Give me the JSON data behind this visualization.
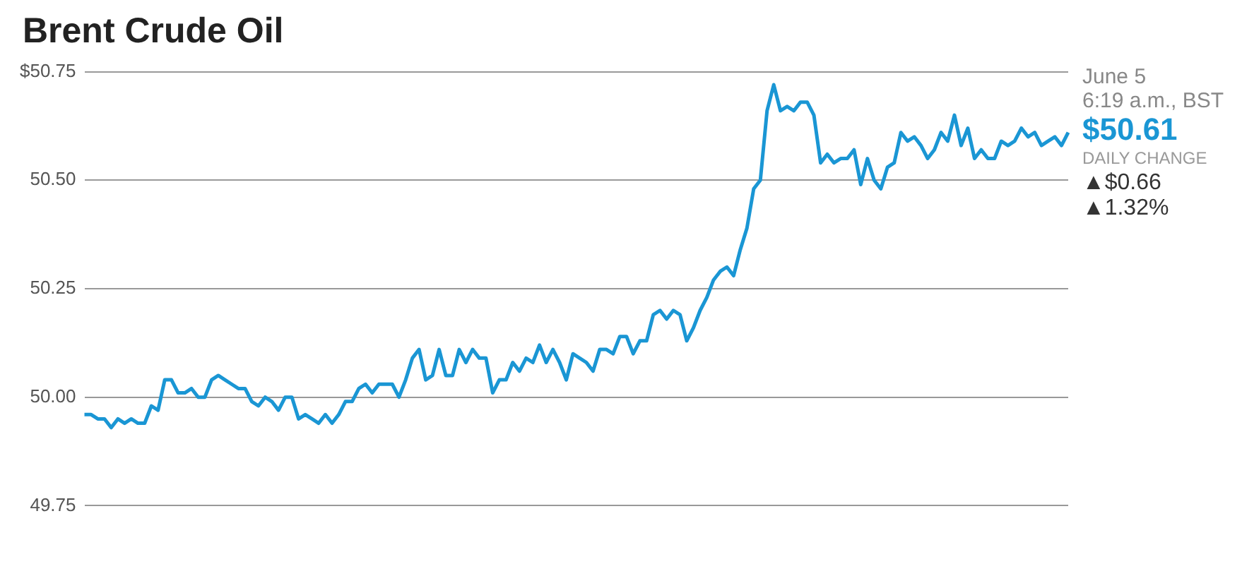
{
  "chart_data": {
    "type": "line",
    "title": "Brent Crude Oil",
    "categories": [
      null,
      null,
      null,
      null,
      null,
      null,
      null,
      null,
      null,
      null,
      null,
      null,
      null,
      null,
      null,
      null,
      null,
      null,
      null,
      null,
      null,
      null,
      null,
      null,
      null,
      null,
      null,
      null,
      null,
      null,
      null,
      null,
      null,
      null,
      null,
      null,
      null,
      null,
      null,
      null,
      null,
      null,
      null,
      null,
      null,
      null,
      null,
      null,
      null,
      null,
      null,
      null,
      null,
      null,
      null,
      null,
      null,
      null,
      null,
      null,
      null,
      null,
      null,
      null,
      null,
      null,
      null,
      null,
      null,
      null,
      null,
      null,
      null,
      null,
      null,
      null,
      null,
      null,
      null,
      null,
      null,
      null,
      null,
      null,
      null,
      null,
      null,
      null,
      null,
      null,
      null,
      null,
      null,
      null,
      null,
      null,
      null,
      null,
      null,
      null,
      null,
      null,
      null,
      null,
      null,
      null,
      null,
      null,
      null,
      null,
      null,
      null,
      null,
      null,
      null,
      null,
      null,
      null,
      null,
      null,
      null,
      null,
      null,
      null,
      null,
      null,
      null,
      null,
      null,
      null,
      null,
      null,
      null,
      null,
      null,
      null,
      null,
      null,
      null,
      null,
      null,
      null,
      null,
      null,
      null,
      null,
      null,
      null
    ],
    "series": [
      {
        "color": "#1a96d4",
        "values": [
          49.96,
          49.96,
          49.95,
          49.95,
          49.93,
          49.95,
          49.94,
          49.95,
          49.94,
          49.94,
          49.98,
          49.97,
          50.04,
          50.04,
          50.01,
          50.01,
          50.02,
          50.0,
          50.0,
          50.04,
          50.05,
          50.04,
          50.03,
          50.02,
          50.02,
          49.99,
          49.98,
          50.0,
          49.99,
          49.97,
          50.0,
          50.0,
          49.95,
          49.96,
          49.95,
          49.94,
          49.96,
          49.94,
          49.96,
          49.99,
          49.99,
          50.02,
          50.03,
          50.01,
          50.03,
          50.03,
          50.03,
          50.0,
          50.04,
          50.09,
          50.11,
          50.04,
          50.05,
          50.11,
          50.05,
          50.05,
          50.11,
          50.08,
          50.11,
          50.09,
          50.09,
          50.01,
          50.04,
          50.04,
          50.08,
          50.06,
          50.09,
          50.08,
          50.12,
          50.08,
          50.11,
          50.08,
          50.04,
          50.1,
          50.09,
          50.08,
          50.06,
          50.11,
          50.11,
          50.1,
          50.14,
          50.14,
          50.1,
          50.13,
          50.13,
          50.19,
          50.2,
          50.18,
          50.2,
          50.19,
          50.13,
          50.16,
          50.2,
          50.23,
          50.27,
          50.29,
          50.3,
          50.28,
          50.34,
          50.39,
          50.48,
          50.5,
          50.66,
          50.72,
          50.66,
          50.67,
          50.66,
          50.68,
          50.68,
          50.65,
          50.54,
          50.56,
          50.54,
          50.55,
          50.55,
          50.57,
          50.49,
          50.55,
          50.5,
          50.48,
          50.53,
          50.54,
          50.61,
          50.59,
          50.6,
          50.58,
          50.55,
          50.57,
          50.61,
          50.59,
          50.65,
          50.58,
          50.62,
          50.55,
          50.57,
          50.55,
          50.55,
          50.59,
          50.58,
          50.59,
          50.62,
          50.6,
          50.61,
          50.58,
          50.59,
          50.6,
          50.58,
          50.61
        ]
      }
    ],
    "ylim": [
      49.75,
      50.75
    ],
    "yticks": [
      {
        "value": 49.75,
        "label": "49.75"
      },
      {
        "value": 50,
        "label": "50.00"
      },
      {
        "value": 50.25,
        "label": "50.25"
      },
      {
        "value": 50.5,
        "label": "50.50"
      },
      {
        "value": 50.75,
        "label": "$50.75"
      }
    ],
    "grid": "y",
    "marker": "none",
    "line_style": "solid",
    "legend": false,
    "tick_labels": "y",
    "annotations": [
      "June 5",
      "6:19 a.m., BST",
      "$50.61",
      "DAILY CHANGE",
      "▲$0.66",
      "▲1.32%"
    ]
  }
}
